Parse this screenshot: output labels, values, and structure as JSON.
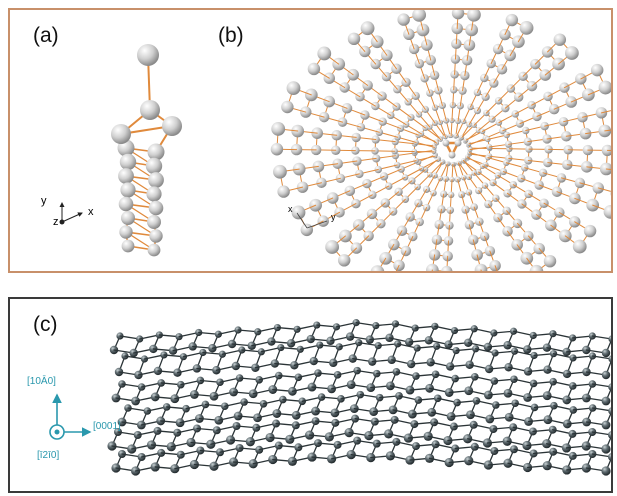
{
  "panels": {
    "a": {
      "label": "(a)",
      "axes": {
        "x": "x",
        "y": "y",
        "z": "z"
      }
    },
    "b": {
      "label": "(b)",
      "axes": {
        "x": "x",
        "y": "y"
      }
    },
    "c": {
      "label": "(c)",
      "directions": {
        "up": "[10Ā0]",
        "right": "[0001]",
        "out": "[ī2ī0]"
      }
    }
  },
  "colors": {
    "top_border": "#c8906a",
    "bottom_border": "#3a3a3a",
    "bond_orange": "#e08a3c",
    "atom_light": "#d8d8d8",
    "atom_dark": "#556065",
    "axis_teal": "#2a98ad"
  }
}
